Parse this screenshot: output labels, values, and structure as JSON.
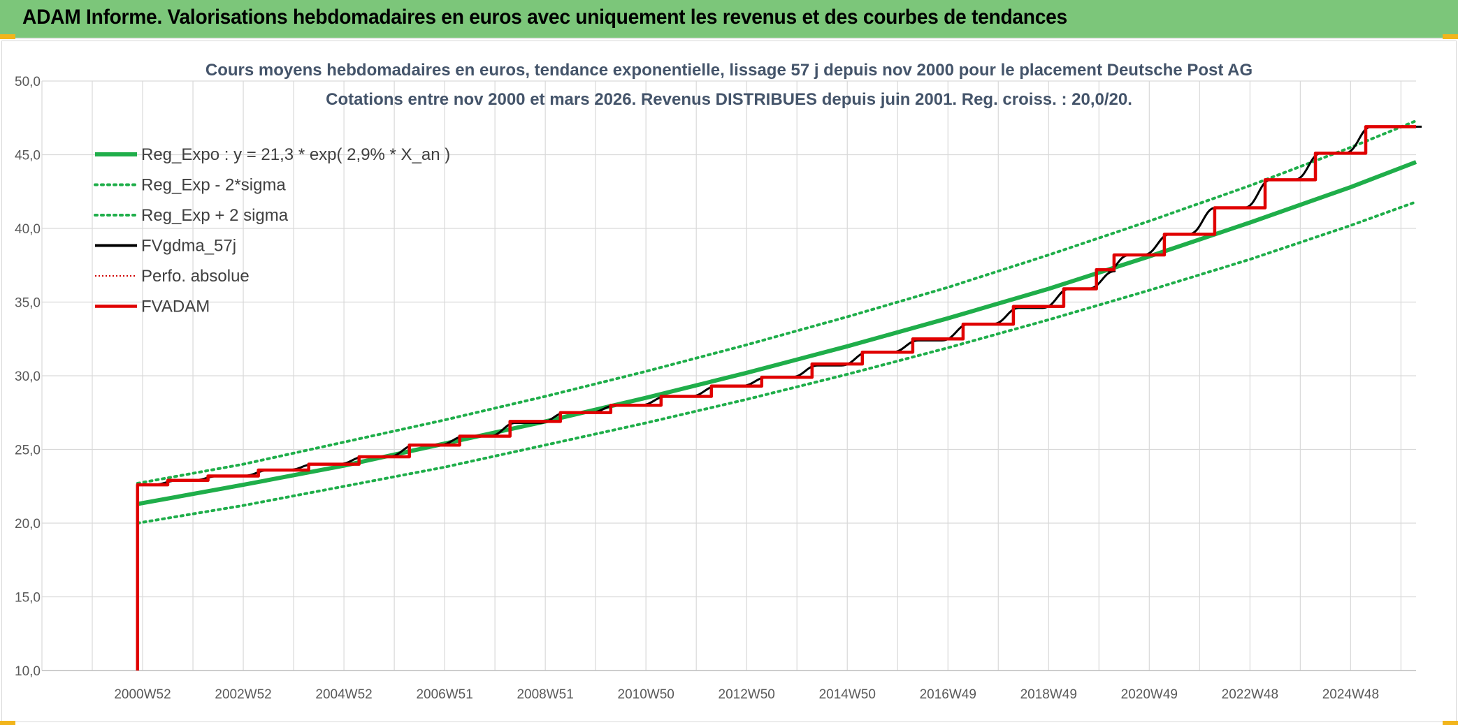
{
  "header": {
    "title": "ADAM Informe. Valorisations hebdomadaires en euros avec uniquement les revenus et des courbes de tendances"
  },
  "colors": {
    "banner": "#7cc67a",
    "accent_corner": "#f2b51c",
    "reg_expo": "#1fae4a",
    "sigma": "#1fae4a",
    "fvgdma": "#000000",
    "perfo": "#d00000",
    "fvadam": "#e00000",
    "grid": "#d9d9d9",
    "axis_text": "#595959",
    "title_text": "#44546a"
  },
  "chart_data": {
    "type": "line",
    "title": "Cours moyens hebdomadaires en euros, tendance exponentielle, lissage 57 j depuis nov 2000 pour le placement Deutsche Post AG",
    "subtitle": "Cotations entre nov 2000 et mars 2026. Revenus DISTRIBUES depuis juin 2001. Reg. croiss. : 20,0/20.",
    "xlabel": "",
    "ylabel": "",
    "ylim": [
      10,
      50
    ],
    "yticks": [
      "10,0",
      "15,0",
      "20,0",
      "25,0",
      "30,0",
      "35,0",
      "40,0",
      "45,0",
      "50,0"
    ],
    "xlim": [
      1999.0,
      2026.3
    ],
    "xticks": [
      {
        "x": 2001.0,
        "label": "2000W52"
      },
      {
        "x": 2003.0,
        "label": "2002W52"
      },
      {
        "x": 2005.0,
        "label": "2004W52"
      },
      {
        "x": 2007.0,
        "label": "2006W51"
      },
      {
        "x": 2009.0,
        "label": "2008W51"
      },
      {
        "x": 2011.0,
        "label": "2010W50"
      },
      {
        "x": 2013.0,
        "label": "2012W50"
      },
      {
        "x": 2015.0,
        "label": "2014W50"
      },
      {
        "x": 2017.0,
        "label": "2016W49"
      },
      {
        "x": 2019.0,
        "label": "2018W49"
      },
      {
        "x": 2021.0,
        "label": "2020W49"
      },
      {
        "x": 2023.0,
        "label": "2022W48"
      },
      {
        "x": 2025.0,
        "label": "2024W48"
      }
    ],
    "grid": true,
    "legend_position": "top-left",
    "series": [
      {
        "name": "Reg_Expo : y = 21,3 * exp( 2,9% *  X_an )",
        "style": "solid-thick",
        "x": [
          2000.9,
          2003,
          2005,
          2007,
          2009,
          2011,
          2013,
          2015,
          2017,
          2019,
          2021,
          2023,
          2025,
          2026.3
        ],
        "values": [
          21.3,
          22.6,
          23.9,
          25.4,
          26.9,
          28.5,
          30.2,
          32.0,
          33.9,
          35.9,
          38.1,
          40.4,
          42.8,
          44.5
        ]
      },
      {
        "name": "Reg_Exp - 2*sigma",
        "style": "dotted",
        "x": [
          2000.9,
          2003,
          2005,
          2007,
          2009,
          2011,
          2013,
          2015,
          2017,
          2019,
          2021,
          2023,
          2025,
          2026.3
        ],
        "values": [
          20.0,
          21.2,
          22.5,
          23.8,
          25.3,
          26.8,
          28.4,
          30.1,
          31.9,
          33.8,
          35.8,
          37.9,
          40.2,
          41.8
        ]
      },
      {
        "name": "Reg_Exp + 2 sigma",
        "style": "dotted",
        "x": [
          2000.9,
          2003,
          2005,
          2007,
          2009,
          2011,
          2013,
          2015,
          2017,
          2019,
          2021,
          2023,
          2025,
          2026.3
        ],
        "values": [
          22.7,
          24.0,
          25.5,
          27.0,
          28.6,
          30.3,
          32.1,
          34.0,
          36.0,
          38.2,
          40.5,
          42.9,
          45.5,
          47.3
        ]
      },
      {
        "name": "FVgdma_57j",
        "style": "solid-thin",
        "x": [
          2001.0,
          2001.6,
          2002.4,
          2003.4,
          2004.3,
          2005.3,
          2006.3,
          2007.3,
          2008.3,
          2009.3,
          2010.3,
          2011.3,
          2012.3,
          2013.3,
          2014.3,
          2015.3,
          2016.3,
          2017.3,
          2018.3,
          2019.3,
          2020.2,
          2020.5,
          2021.3,
          2022.2,
          2023.3,
          2024.3,
          2025.3,
          2026.3
        ],
        "values": [
          22.6,
          22.9,
          23.2,
          23.6,
          24.0,
          24.5,
          25.3,
          25.9,
          26.8,
          27.5,
          28.0,
          28.6,
          29.3,
          29.9,
          30.7,
          31.6,
          32.4,
          33.5,
          34.6,
          35.9,
          37.1,
          38.2,
          39.6,
          41.4,
          43.3,
          45.1,
          46.9,
          46.9
        ]
      },
      {
        "name": "Perfo. absolue",
        "style": "dotted-red",
        "x": [],
        "values": []
      },
      {
        "name": "FVADAM",
        "style": "step-thick",
        "x": [
          2000.9,
          2000.9,
          2001.5,
          2002.3,
          2003.3,
          2004.3,
          2005.3,
          2006.3,
          2007.3,
          2008.3,
          2009.3,
          2010.3,
          2011.3,
          2012.3,
          2013.3,
          2014.3,
          2015.3,
          2016.3,
          2017.3,
          2018.3,
          2019.3,
          2019.95,
          2020.3,
          2021.3,
          2022.3,
          2023.3,
          2024.3,
          2025.3,
          2026.3
        ],
        "values": [
          10.0,
          22.6,
          22.9,
          23.2,
          23.6,
          24.0,
          24.5,
          25.3,
          25.9,
          26.9,
          27.5,
          28.0,
          28.6,
          29.3,
          29.9,
          30.8,
          31.6,
          32.5,
          33.5,
          34.7,
          35.9,
          37.2,
          38.2,
          39.6,
          41.4,
          43.3,
          45.1,
          46.9,
          46.9
        ]
      }
    ]
  }
}
